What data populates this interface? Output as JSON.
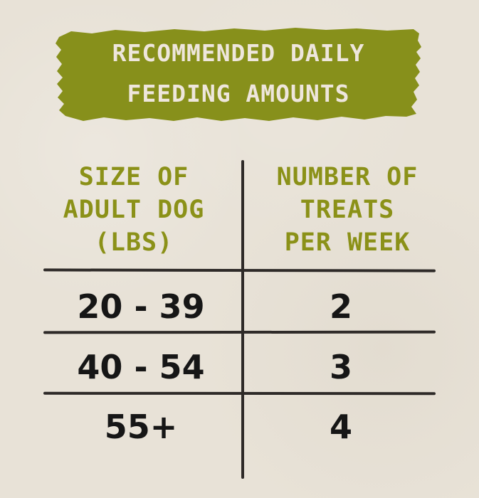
{
  "banner": {
    "line1": "RECOMMENDED DAILY",
    "line2": "FEEDING AMOUNTS",
    "color": "#87901b",
    "text_color": "#eee6dc"
  },
  "table": {
    "headers": {
      "left": [
        "SIZE OF",
        "ADULT DOG",
        "(LBS)"
      ],
      "right": [
        "NUMBER OF",
        "TREATS",
        "PER WEEK"
      ],
      "color": "#8b9118"
    },
    "rows": [
      {
        "size": "20 - 39",
        "treats": "2"
      },
      {
        "size": "40 - 54",
        "treats": "3"
      },
      {
        "size": "55+",
        "treats": "4"
      }
    ],
    "line_color": "#2e2a28",
    "value_color": "#161616"
  },
  "background_color": "#e8e2d7"
}
